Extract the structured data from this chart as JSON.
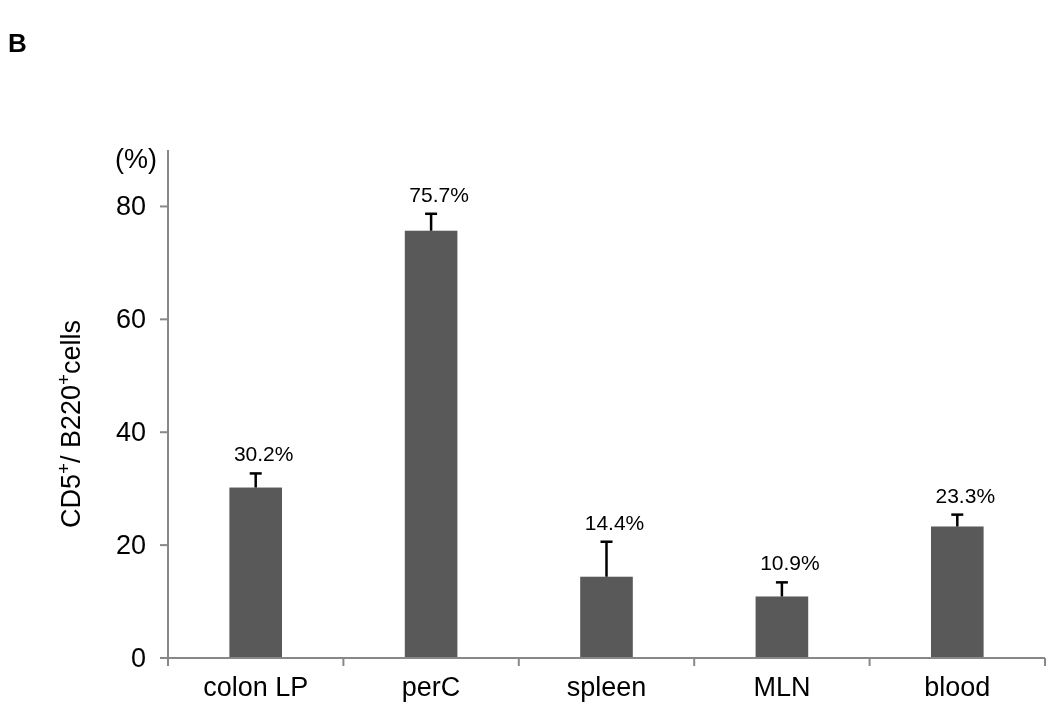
{
  "chart_data": {
    "type": "bar",
    "ylabel": "CD5$^{+}$/ B220$^{+}$cells",
    "annotations": [
      "B",
      "(%)"
    ],
    "categories": [
      "colon LP",
      "perC",
      "spleen",
      "MLN",
      "blood"
    ],
    "values": [
      30.2,
      75.7,
      14.4,
      10.9,
      23.3
    ],
    "value_labels": [
      "30.2%",
      "75.7%",
      "14.4%",
      "10.9%",
      "23.3%"
    ],
    "errors": [
      [
        30.2,
        32.7
      ],
      [
        75.7,
        78.7
      ],
      [
        14.4,
        20.6
      ],
      [
        10.9,
        13.4
      ],
      [
        23.3,
        25.4
      ]
    ],
    "color": "#595959",
    "ylim": [
      0,
      90
    ],
    "yticks": [
      0,
      20,
      40,
      60,
      80
    ],
    "grid": false
  }
}
